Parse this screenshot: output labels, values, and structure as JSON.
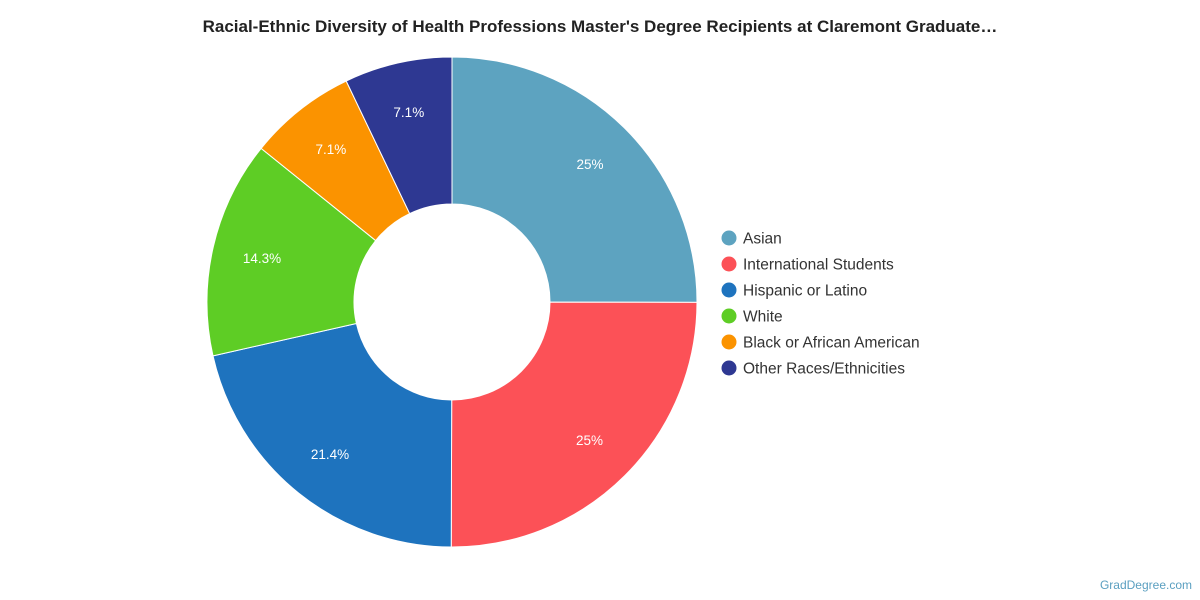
{
  "credit": "GradDegree.com",
  "chart_data": {
    "type": "pie",
    "title": "Racial-Ethnic Diversity of Health Professions Master's Degree Recipients at Claremont Graduate…",
    "legend_position": "right",
    "slices": [
      {
        "name": "Asian",
        "value": 25,
        "label": "25%",
        "color": "#5da3c0"
      },
      {
        "name": "International Students",
        "value": 25,
        "label": "25%",
        "color": "#fc5157"
      },
      {
        "name": "Hispanic or Latino",
        "value": 21.4,
        "label": "21.4%",
        "color": "#1e73be"
      },
      {
        "name": "White",
        "value": 14.3,
        "label": "14.3%",
        "color": "#5ecd25"
      },
      {
        "name": "Black or African American",
        "value": 7.1,
        "label": "7.1%",
        "color": "#fb9300"
      },
      {
        "name": "Other Races/Ethnicities",
        "value": 7.1,
        "label": "7.1%",
        "color": "#2e3892"
      }
    ]
  }
}
